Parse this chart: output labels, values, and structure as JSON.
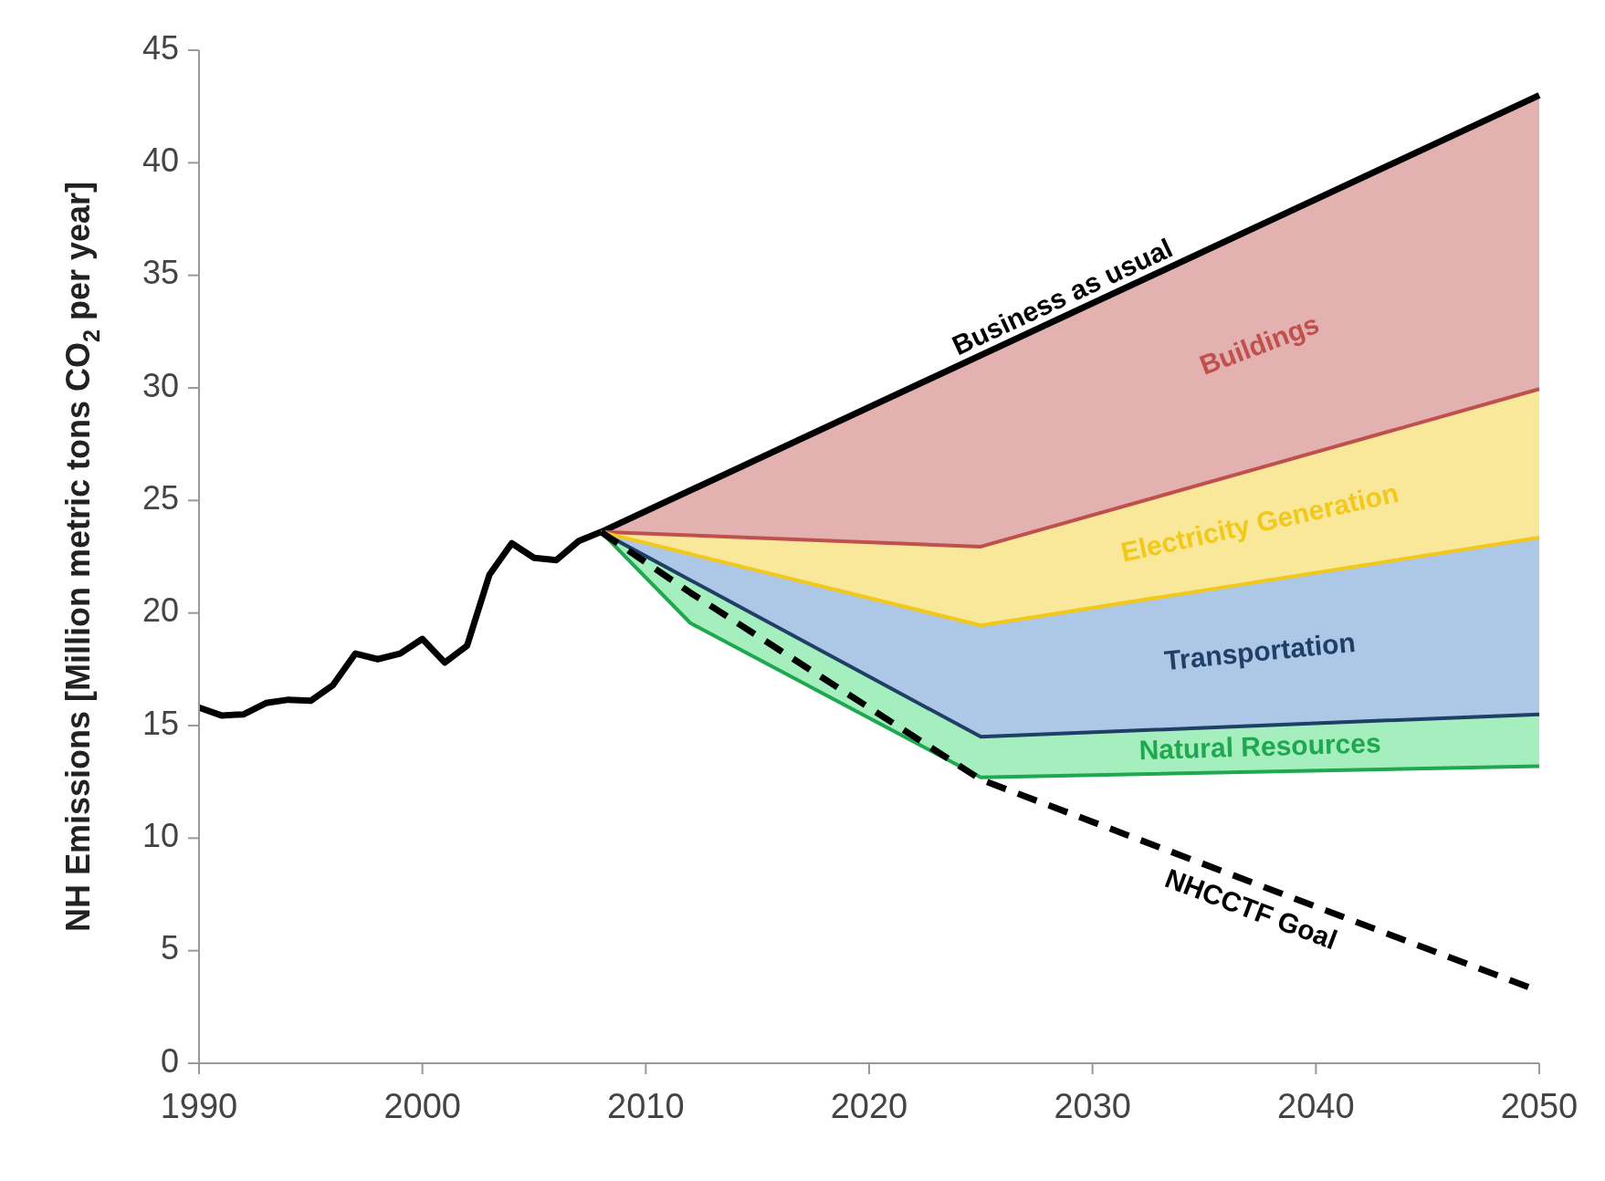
{
  "chart_data": {
    "type": "line",
    "ylabel": "NH Emissions [Million metric tons CO$_{2}$ per year]",
    "xlim": [
      1990,
      2050
    ],
    "xticks": [
      1990,
      2000,
      2010,
      2020,
      2030,
      2040,
      2050
    ],
    "ylim": [
      0,
      45
    ],
    "yticks": [
      0,
      5,
      10,
      15,
      20,
      25,
      30,
      35,
      40,
      45
    ],
    "grid": false,
    "legend": false,
    "marker": "none",
    "series": [
      {
        "name": "Business as usual",
        "color": "#000000",
        "x": [
          1990,
          1991,
          1992,
          1993,
          1994,
          1995,
          1996,
          1997,
          1998,
          1999,
          2000,
          2001,
          2002,
          2003,
          2004,
          2005,
          2006,
          2007,
          2008,
          2050
        ],
        "values": [
          15.8,
          15.45,
          15.5,
          16.0,
          16.15,
          16.1,
          16.8,
          18.2,
          17.95,
          18.2,
          18.85,
          17.8,
          18.55,
          21.7,
          23.1,
          22.45,
          22.35,
          23.2,
          23.6,
          43.0
        ]
      },
      {
        "name": "Buildings",
        "color": "#c0504d",
        "x": [
          2008,
          2012,
          2025,
          2050
        ],
        "values": [
          23.6,
          23.45,
          22.95,
          29.95
        ],
        "lower": [
          23.6,
          23.45,
          22.95,
          29.95
        ],
        "upper": [
          23.6,
          25.45,
          31.45,
          43.0
        ]
      },
      {
        "name": "Electricity Generation",
        "color": "#f2c81a",
        "x": [
          2008,
          2012,
          2025,
          2050
        ],
        "values": [
          23.6,
          22.62,
          19.45,
          23.35
        ],
        "lower": [
          23.6,
          22.62,
          19.45,
          23.35
        ],
        "upper": [
          23.6,
          23.45,
          22.95,
          29.95
        ]
      },
      {
        "name": "Transportation",
        "color": "#1f3f66",
        "x": [
          2008,
          2012,
          2025,
          2050
        ],
        "values": [
          23.6,
          21.46,
          14.5,
          15.5
        ],
        "lower": [
          23.6,
          21.46,
          14.5,
          15.5
        ],
        "upper": [
          23.6,
          22.62,
          19.45,
          23.35
        ]
      },
      {
        "name": "Natural Resources",
        "color": "#1fa84f",
        "x": [
          2008,
          2012,
          2025,
          2050
        ],
        "values": [
          23.6,
          19.55,
          12.7,
          13.2
        ],
        "lower": [
          23.6,
          19.55,
          12.7,
          13.2
        ],
        "upper": [
          23.6,
          21.46,
          14.5,
          15.5
        ]
      },
      {
        "name": "NHCCTF Goal",
        "color": "#000000",
        "line_style": "dashed",
        "x": [
          2008,
          2012,
          2025,
          2050
        ],
        "values": [
          23.6,
          20.9,
          12.6,
          3.2
        ]
      }
    ]
  }
}
